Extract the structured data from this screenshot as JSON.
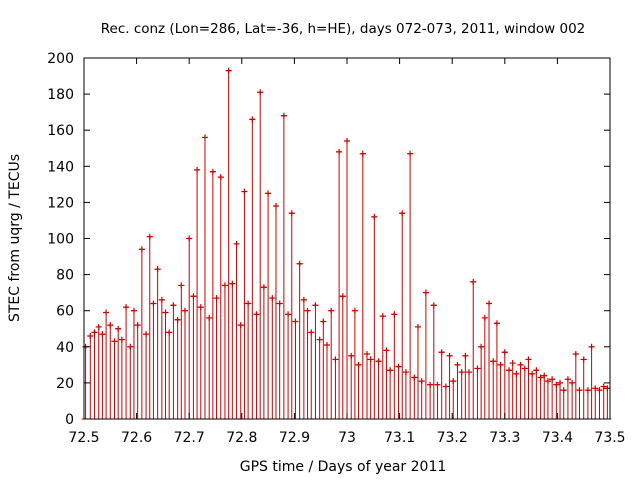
{
  "chart_data": {
    "type": "scatter",
    "title": "Rec. conz (Lon=286, Lat=-36, h=HE), days 072-073, 2011, window 002",
    "xlabel": "GPS time / Days of year 2011",
    "ylabel": "STEC from uqrg / TECUs",
    "xlim": [
      72.5,
      73.5
    ],
    "ylim": [
      0,
      200
    ],
    "xticks": [
      72.5,
      72.6,
      72.7,
      72.8,
      72.9,
      73,
      73.1,
      73.2,
      73.3,
      73.4,
      73.5
    ],
    "xtick_labels": [
      "72.5",
      "72.6",
      "72.7",
      "72.8",
      "72.9",
      "73",
      "73.1",
      "73.2",
      "73.3",
      "73.4",
      "73.5"
    ],
    "yticks": [
      0,
      20,
      40,
      60,
      80,
      100,
      120,
      140,
      160,
      180,
      200
    ],
    "ytick_labels": [
      "0",
      "20",
      "40",
      "60",
      "80",
      "100",
      "120",
      "140",
      "160",
      "180",
      "200"
    ],
    "grid": false,
    "legend": "none",
    "series": [
      {
        "style": "points with error bars to zero",
        "color": "#cc0000",
        "x": [
          72.503,
          72.512,
          72.52,
          72.528,
          72.535,
          72.542,
          72.55,
          72.558,
          72.565,
          72.572,
          72.58,
          72.588,
          72.595,
          72.602,
          72.61,
          72.618,
          72.625,
          72.632,
          72.64,
          72.648,
          72.655,
          72.662,
          72.67,
          72.678,
          72.685,
          72.692,
          72.7,
          72.708,
          72.715,
          72.722,
          72.73,
          72.738,
          72.745,
          72.752,
          72.76,
          72.768,
          72.775,
          72.782,
          72.79,
          72.798,
          72.805,
          72.812,
          72.82,
          72.828,
          72.835,
          72.842,
          72.85,
          72.858,
          72.865,
          72.872,
          72.88,
          72.888,
          72.895,
          72.902,
          72.91,
          72.918,
          72.925,
          72.932,
          72.94,
          72.948,
          72.955,
          72.962,
          72.97,
          72.978,
          72.985,
          72.992,
          73.0,
          73.008,
          73.015,
          73.022,
          73.03,
          73.038,
          73.045,
          73.052,
          73.06,
          73.068,
          73.075,
          73.082,
          73.09,
          73.098,
          73.105,
          73.112,
          73.12,
          73.128,
          73.135,
          73.142,
          73.15,
          73.158,
          73.165,
          73.172,
          73.18,
          73.188,
          73.195,
          73.202,
          73.21,
          73.218,
          73.225,
          73.232,
          73.24,
          73.248,
          73.255,
          73.262,
          73.27,
          73.278,
          73.285,
          73.292,
          73.3,
          73.308,
          73.315,
          73.322,
          73.33,
          73.338,
          73.345,
          73.352,
          73.36,
          73.368,
          73.375,
          73.382,
          73.39,
          73.398,
          73.405,
          73.412,
          73.42,
          73.428,
          73.435,
          73.442,
          73.45,
          73.458,
          73.465,
          73.472,
          73.48,
          73.488,
          73.495
        ],
        "y": [
          40,
          46,
          48,
          51,
          47,
          59,
          52,
          43,
          50,
          44,
          62,
          40,
          60,
          52,
          94,
          47,
          101,
          64,
          83,
          66,
          59,
          48,
          63,
          55,
          74,
          60,
          100,
          68,
          138,
          62,
          156,
          56,
          137,
          67,
          134,
          74,
          193,
          75,
          97,
          52,
          126,
          64,
          166,
          58,
          181,
          73,
          125,
          67,
          118,
          64,
          168,
          58,
          114,
          54,
          86,
          66,
          60,
          48,
          63,
          44,
          54,
          41,
          60,
          33,
          148,
          68,
          154,
          35,
          60,
          30,
          147,
          36,
          33,
          112,
          32,
          57,
          38,
          27,
          58,
          29,
          114,
          26,
          147,
          23,
          51,
          21,
          70,
          19,
          63,
          19,
          37,
          18,
          35,
          21,
          30,
          26,
          35,
          26,
          76,
          28,
          40,
          56,
          64,
          32,
          53,
          30,
          37,
          27,
          31,
          25,
          30,
          28,
          33,
          25,
          27,
          23,
          24,
          21,
          22,
          19,
          20,
          16,
          22,
          20,
          36,
          16,
          33,
          16,
          40,
          17,
          16,
          18,
          17
        ]
      }
    ]
  }
}
